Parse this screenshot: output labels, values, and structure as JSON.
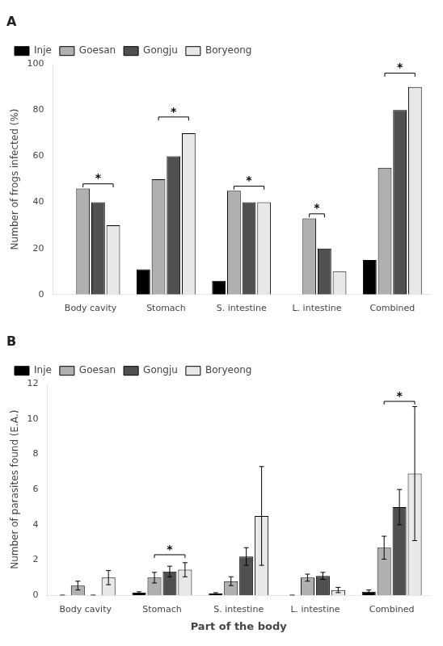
{
  "chart_data": [
    {
      "type": "bar",
      "title": "A",
      "ylabel": "Number of frogs infected (%)",
      "categories": [
        "Body cavity",
        "Stomach",
        "S. intestine",
        "L. intestine",
        "Combined"
      ],
      "series": [
        {
          "name": "Inje",
          "color": "#000000",
          "values": [
            0,
            11,
            6,
            0,
            15
          ]
        },
        {
          "name": "Goesan",
          "color": "#b0b0b0",
          "values": [
            46,
            50,
            45,
            33,
            55
          ]
        },
        {
          "name": "Gongju",
          "color": "#505050",
          "values": [
            40,
            60,
            40,
            20,
            80
          ]
        },
        {
          "name": "Boryeong",
          "color": "#e8e8e8",
          "values": [
            30,
            70,
            40,
            10,
            90
          ]
        }
      ],
      "ylim": [
        0,
        100
      ],
      "yticks": [
        0,
        20,
        40,
        60,
        80,
        100
      ],
      "legend": "upper left",
      "grid": false,
      "annotations": [
        {
          "text": "*",
          "category": "Body cavity",
          "from": "Goesan",
          "to": "Boryeong",
          "y": 48
        },
        {
          "text": "*",
          "category": "Stomach",
          "from": "Goesan",
          "to": "Boryeong",
          "y": 77
        },
        {
          "text": "*",
          "category": "S. intestine",
          "from": "Goesan",
          "to": "Boryeong",
          "y": 47
        },
        {
          "text": "*",
          "category": "L. intestine",
          "from": "Goesan",
          "to": "Gongju",
          "y": 35
        },
        {
          "text": "*",
          "category": "Combined",
          "from": "Goesan",
          "to": "Boryeong",
          "y": 96
        }
      ]
    },
    {
      "type": "bar",
      "title": "B",
      "xlabel": "Part of the body",
      "ylabel": "Number of parasites found (E.A.)",
      "categories": [
        "Body cavity",
        "Stomach",
        "S. intestine",
        "L. intestine",
        "Combined"
      ],
      "series": [
        {
          "name": "Inje",
          "color": "#000000",
          "values": [
            0,
            0.15,
            0.1,
            0,
            0.2
          ],
          "errors": [
            0,
            0.05,
            0.05,
            0,
            0.1
          ]
        },
        {
          "name": "Goesan",
          "color": "#b0b0b0",
          "values": [
            0.55,
            1.0,
            0.8,
            1.0,
            2.7
          ],
          "errors": [
            0.25,
            0.3,
            0.25,
            0.2,
            0.65
          ]
        },
        {
          "name": "Gongju",
          "color": "#505050",
          "values": [
            0,
            1.35,
            2.2,
            1.1,
            5.0
          ],
          "errors": [
            0,
            0.3,
            0.5,
            0.2,
            1.0
          ]
        },
        {
          "name": "Boryeong",
          "color": "#e8e8e8",
          "values": [
            1.0,
            1.45,
            4.5,
            0.3,
            6.9
          ],
          "errors": [
            0.4,
            0.4,
            2.8,
            0.15,
            3.8
          ]
        }
      ],
      "ylim": [
        0,
        12
      ],
      "yticks": [
        0,
        2,
        4,
        6,
        8,
        10,
        12
      ],
      "legend": "upper left",
      "grid": false,
      "annotations": [
        {
          "text": "*",
          "category": "Stomach",
          "from": "Goesan",
          "to": "Boryeong",
          "y": 2.3
        },
        {
          "text": "*",
          "category": "Combined",
          "from": "Goesan",
          "to": "Boryeong",
          "y": 11.0
        }
      ]
    }
  ]
}
